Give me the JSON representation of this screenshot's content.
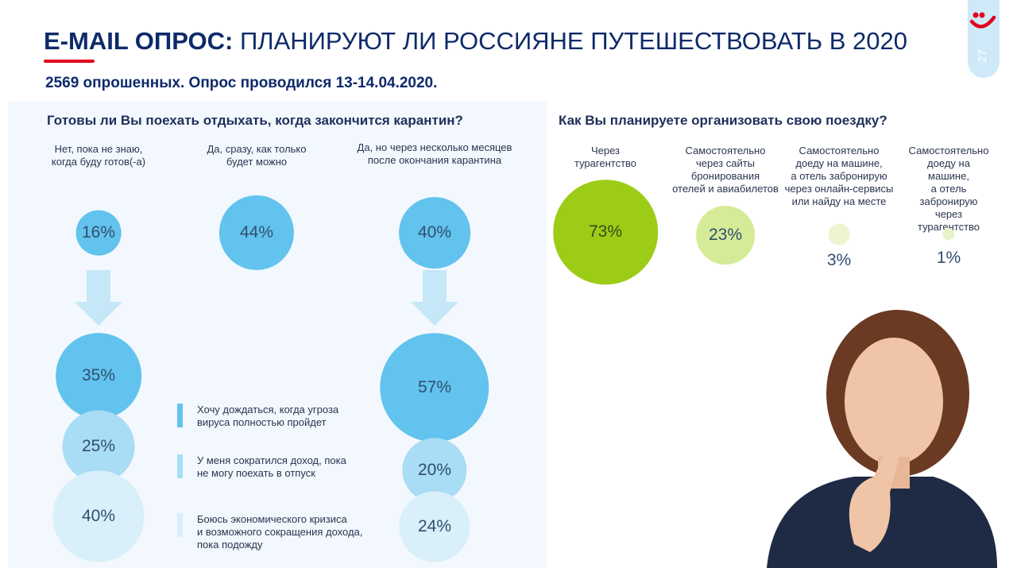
{
  "header": {
    "title_bold": "E-MAIL ОПРОС:",
    "title_rest": "ПЛАНИРУЮТ ЛИ РОССИЯНЕ ПУТЕШЕСТВОВАТЬ В 2020",
    "subtitle": "2569 опрошенных. Опрос проводился 13-14.04.2020.",
    "page_number": "27"
  },
  "left": {
    "question": "Готовы ли Вы поехать отдыхать, когда закончится карантин?",
    "groups": [
      {
        "label": "Нет, пока не знаю,\nкогда буду готов(-а)",
        "value": 16,
        "value_label": "16%",
        "reasons": [
          {
            "value": 35,
            "value_label": "35%"
          },
          {
            "value": 25,
            "value_label": "25%"
          },
          {
            "value": 40,
            "value_label": "40%"
          }
        ]
      },
      {
        "label": "Да, сразу, как только\nбудет можно",
        "value": 44,
        "value_label": "44%",
        "reasons": []
      },
      {
        "label": "Да, но через несколько месяцев\nпосле окончания карантина",
        "value": 40,
        "value_label": "40%",
        "reasons": [
          {
            "value": 57,
            "value_label": "57%"
          },
          {
            "value": 20,
            "value_label": "20%"
          },
          {
            "value": 24,
            "value_label": "24%"
          }
        ]
      }
    ],
    "legend": [
      {
        "label": "Хочу дождаться, когда угроза\nвируса полностью пройдет",
        "color": "#62c3ee"
      },
      {
        "label": "У меня сократился доход, пока\nне могу поехать в отпуск",
        "color": "#a9dcf5"
      },
      {
        "label": "Боюсь экономического кризиса\nи возможного сокращения дохода,\nпока подожду",
        "color": "#d9effa"
      }
    ]
  },
  "right": {
    "question": "Как Вы планируете организовать свою поездку?",
    "options": [
      {
        "label": "Через\nтурагентство",
        "value": 73,
        "value_label": "73%",
        "color": "#9ccc16"
      },
      {
        "label": "Самостоятельно\nчерез сайты\nбронирования\nотелей и авиабилетов",
        "value": 23,
        "value_label": "23%",
        "color": "#d6eb98"
      },
      {
        "label": "Самостоятельно\nдоеду на машине,\nа отель забронирую\nчерез онлайн-сервисы\nили найду на месте",
        "value": 3,
        "value_label": "3%",
        "color": "#ecf5d0"
      },
      {
        "label": "Самостоятельно\nдоеду на машине,\nа отель забронирую\nчерез турагентство",
        "value": 1,
        "value_label": "1%",
        "color": "#e8f3c8"
      }
    ]
  }
}
